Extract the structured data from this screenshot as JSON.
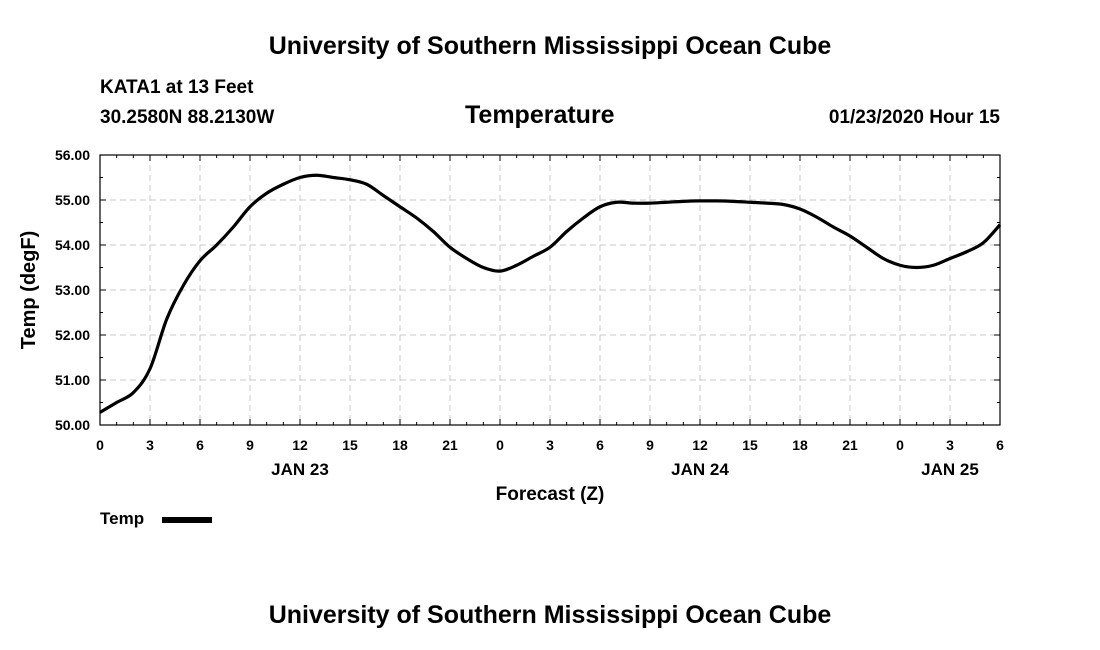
{
  "header": {
    "title_top": "University of Southern Mississippi Ocean Cube",
    "title_bottom": "University of Southern Mississippi Ocean Cube",
    "station": "KATA1 at 13 Feet",
    "coords": "30.2580N 88.2130W",
    "datetime": "01/23/2020 Hour 15"
  },
  "legend": {
    "label": "Temp"
  },
  "colors": {
    "line": "#000000",
    "grid": "#c8c8c8",
    "background": "#ffffff"
  },
  "chart_data": {
    "type": "line",
    "title": "Temperature",
    "xlabel": "Forecast (Z)",
    "ylabel": "Temp (degF)",
    "x_unit": "forecast hour (starting 00Z JAN 23)",
    "xlim": [
      0,
      54
    ],
    "ylim": [
      50,
      56
    ],
    "grid": true,
    "legend_position": "bottom-left",
    "x_tick_values": [
      0,
      3,
      6,
      9,
      12,
      15,
      18,
      21,
      24,
      27,
      30,
      33,
      36,
      39,
      42,
      45,
      48,
      51,
      54
    ],
    "x_tick_labels": [
      "0",
      "3",
      "6",
      "9",
      "12",
      "15",
      "18",
      "21",
      "0",
      "3",
      "6",
      "9",
      "12",
      "15",
      "18",
      "21",
      "0",
      "3",
      "6"
    ],
    "day_labels": [
      {
        "at": 12,
        "text": "JAN 23"
      },
      {
        "at": 36,
        "text": "JAN 24"
      },
      {
        "at": 51,
        "text": "JAN 25"
      }
    ],
    "y_tick_values": [
      50,
      51,
      52,
      53,
      54,
      55,
      56
    ],
    "y_tick_labels": [
      "50.00",
      "51.00",
      "52.00",
      "53.00",
      "54.00",
      "55.00",
      "56.00"
    ],
    "series": [
      {
        "name": "Temp",
        "x": [
          0,
          1,
          2,
          3,
          4,
          5,
          6,
          7,
          8,
          9,
          10,
          11,
          12,
          13,
          14,
          15,
          16,
          17,
          18,
          19,
          20,
          21,
          22,
          23,
          24,
          25,
          26,
          27,
          28,
          29,
          30,
          31,
          32,
          33,
          34,
          35,
          36,
          37,
          38,
          39,
          40,
          41,
          42,
          43,
          44,
          45,
          46,
          47,
          48,
          49,
          50,
          51,
          52,
          53,
          54
        ],
        "values": [
          50.28,
          50.5,
          50.72,
          51.25,
          52.35,
          53.1,
          53.65,
          54.0,
          54.4,
          54.85,
          55.15,
          55.35,
          55.5,
          55.55,
          55.5,
          55.45,
          55.35,
          55.1,
          54.85,
          54.6,
          54.3,
          53.95,
          53.7,
          53.5,
          53.42,
          53.55,
          53.75,
          53.95,
          54.3,
          54.6,
          54.85,
          54.95,
          54.93,
          54.93,
          54.95,
          54.97,
          54.98,
          54.98,
          54.97,
          54.95,
          54.93,
          54.9,
          54.8,
          54.62,
          54.4,
          54.2,
          53.95,
          53.7,
          53.55,
          53.5,
          53.55,
          53.7,
          53.85,
          54.05,
          54.45
        ]
      }
    ]
  }
}
